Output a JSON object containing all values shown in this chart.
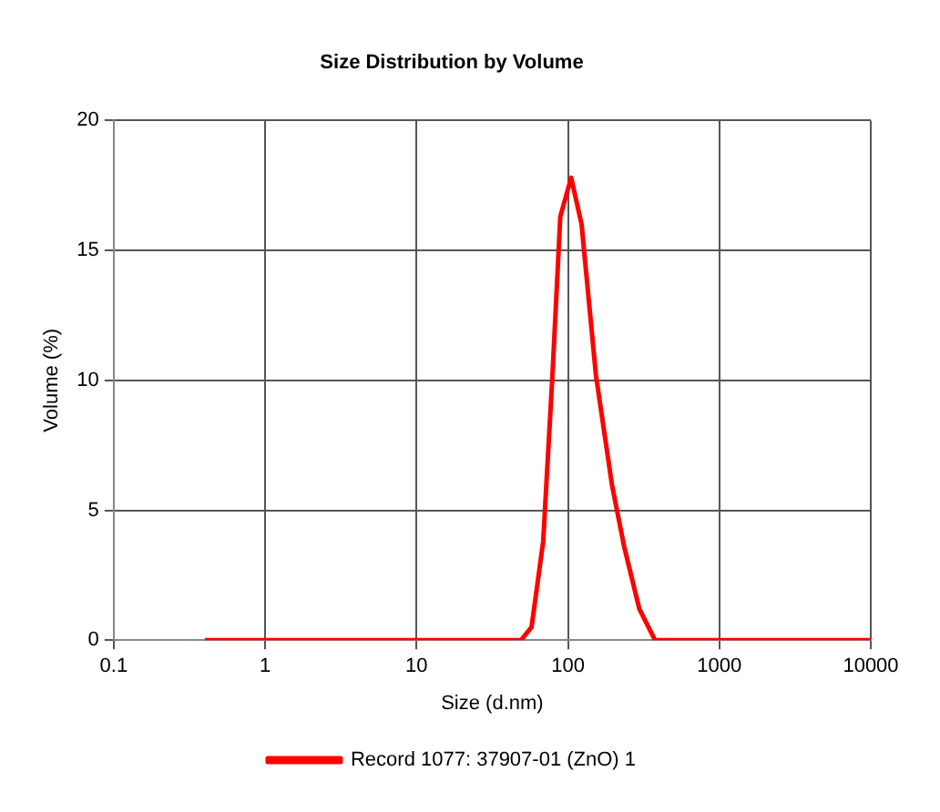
{
  "chart_data": {
    "type": "line",
    "title": "Size Distribution by Volume",
    "xlabel": "Size (d.nm)",
    "ylabel": "Volume (%)",
    "log": "x",
    "xlim": [
      0.1,
      10000
    ],
    "xticks": [
      0.1,
      1,
      10,
      100,
      1000,
      10000
    ],
    "ylim": [
      0,
      20
    ],
    "yticks": [
      0,
      5,
      10,
      15,
      20
    ],
    "grid": true,
    "legend": "bottom",
    "marker": "none",
    "line_style": "solid",
    "x": [
      0.4,
      49,
      57.5,
      68.6,
      79,
      89,
      105,
      123,
      153,
      195,
      235,
      296,
      376,
      10000
    ],
    "series": [
      {
        "name": "Record 1077: 37907-01 (ZnO) 1",
        "color": "#ff0000",
        "values": [
          0,
          0,
          0.5,
          3.8,
          10.2,
          16.3,
          17.8,
          16,
          10.2,
          6,
          3.6,
          1.2,
          0,
          0
        ]
      }
    ]
  }
}
